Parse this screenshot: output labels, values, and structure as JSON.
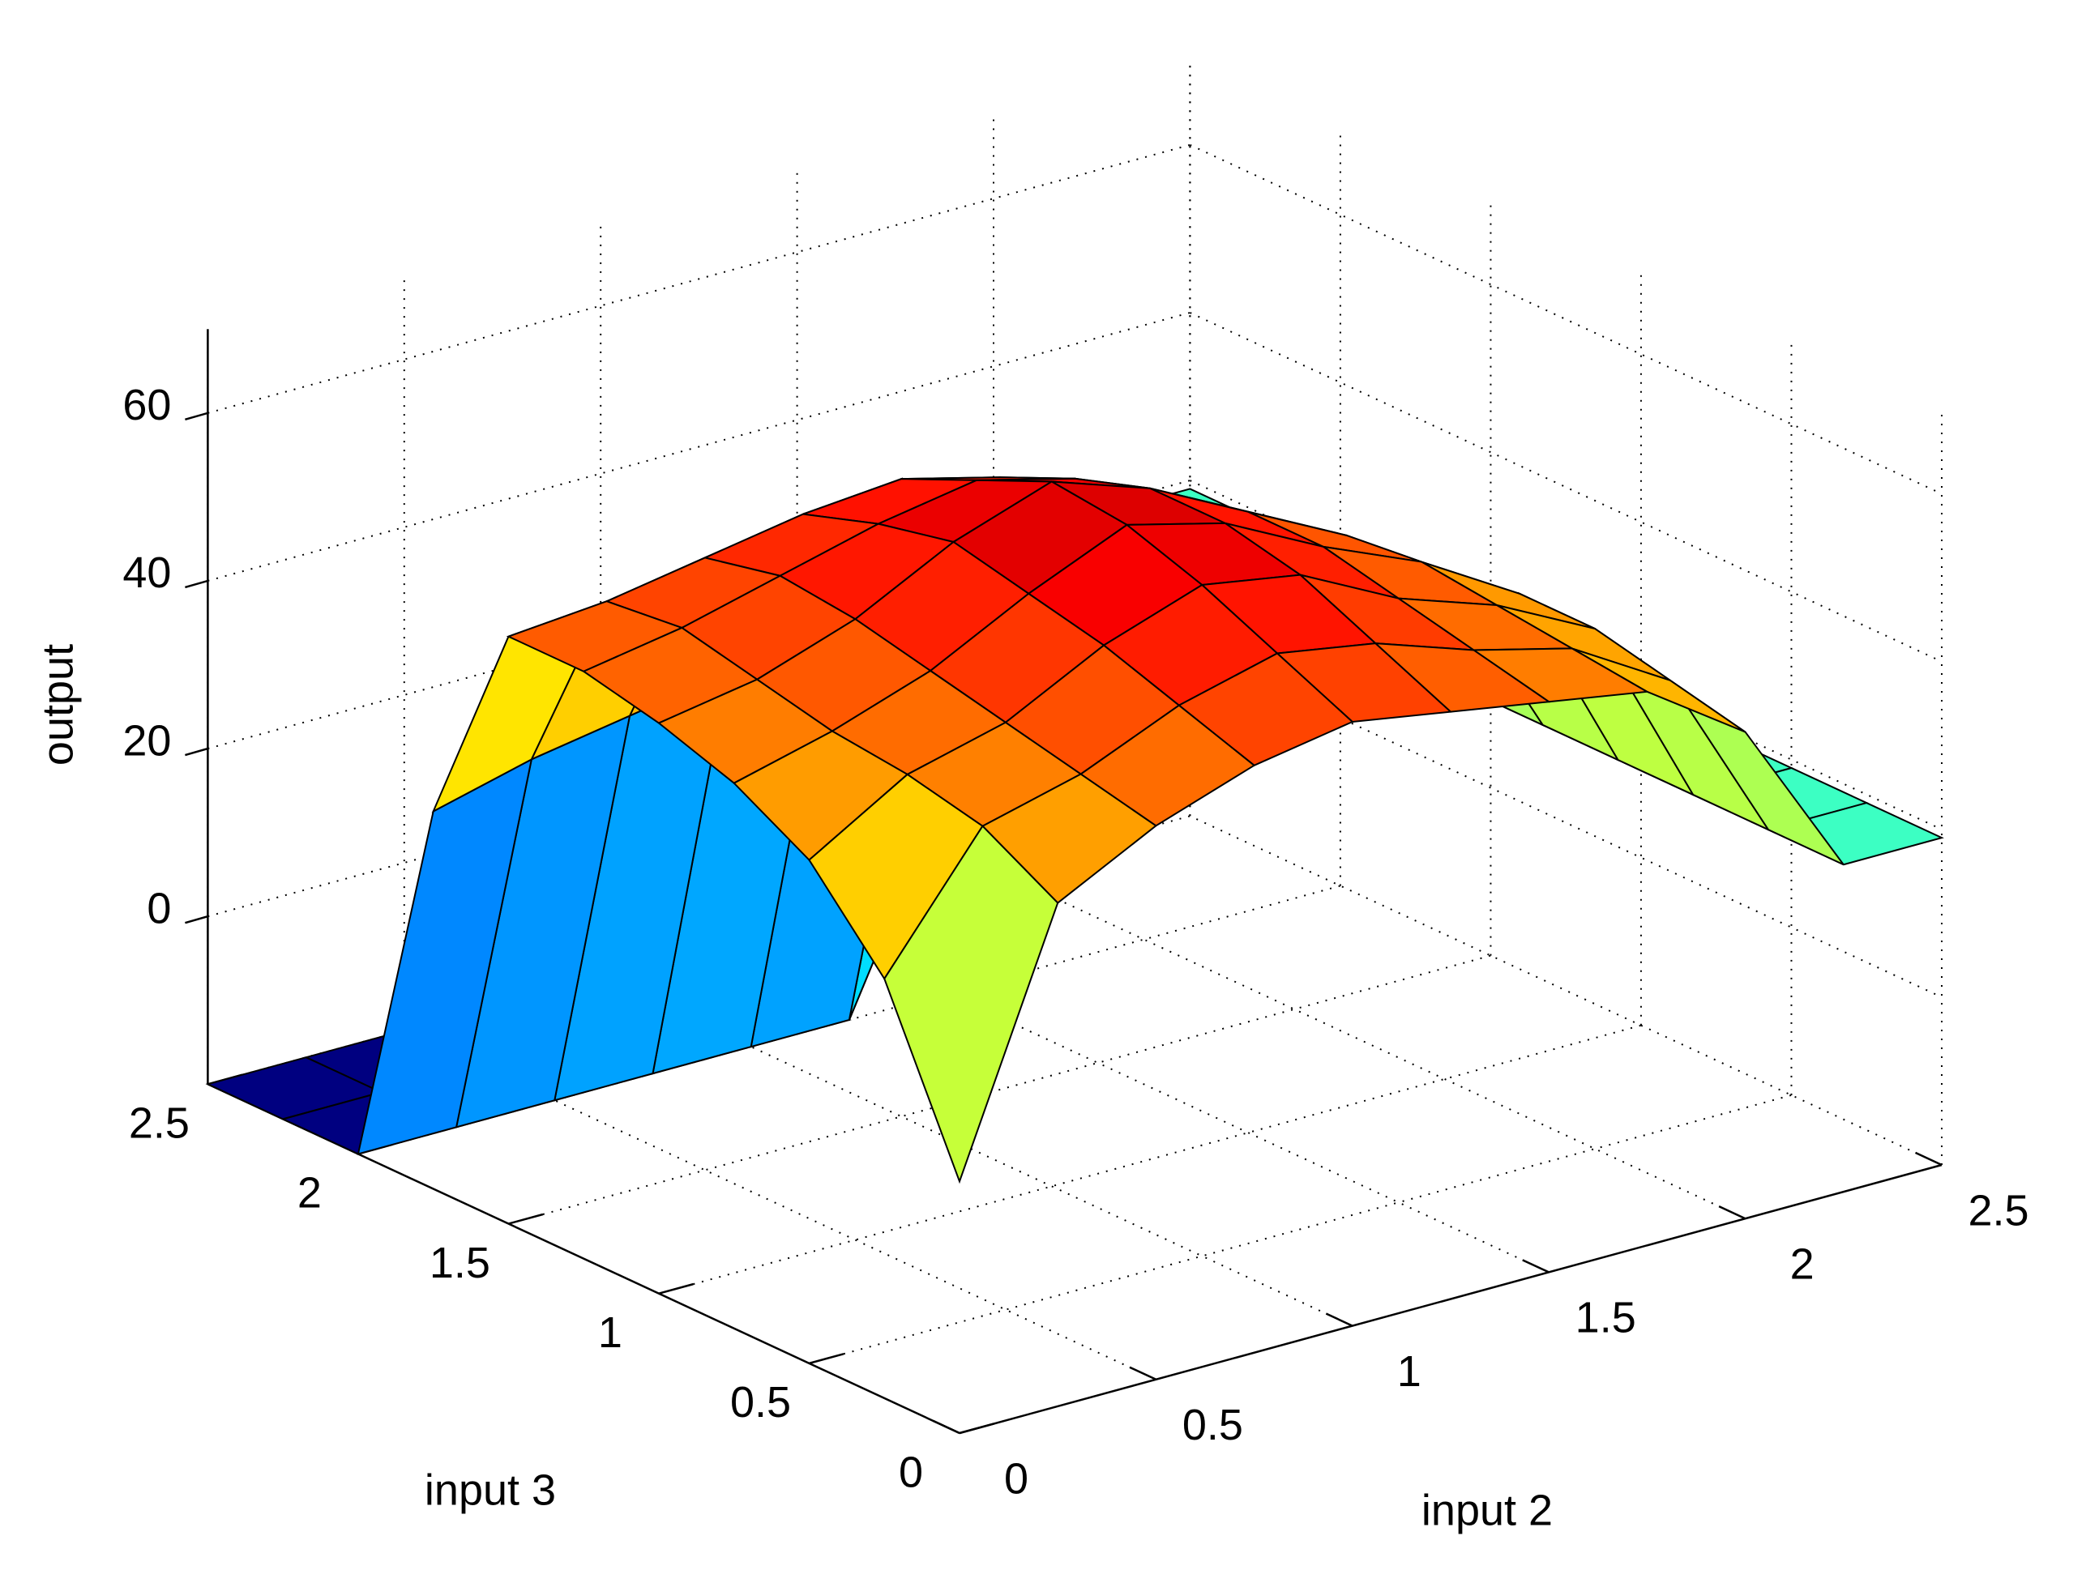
{
  "chart_data": {
    "type": "surface",
    "xlabel": "input 2",
    "ylabel": "input 3",
    "zlabel": "output",
    "x": [
      0,
      0.25,
      0.5,
      0.75,
      1,
      1.25,
      1.5,
      1.75,
      2,
      2.25,
      2.5
    ],
    "y": [
      0,
      0.25,
      0.5,
      0.75,
      1,
      1.25,
      1.5,
      1.75,
      2,
      2.25,
      2.5
    ],
    "z": [
      [
        10,
        40,
        46,
        50,
        52,
        50,
        48,
        46,
        38,
        19,
        19
      ],
      [
        30,
        45,
        48,
        53,
        56,
        54,
        50,
        47,
        40,
        19,
        19
      ],
      [
        40,
        47,
        50,
        56,
        60,
        58,
        52,
        48,
        42,
        19,
        19
      ],
      [
        45,
        48,
        52,
        58,
        63,
        60,
        54,
        49,
        42,
        19,
        19
      ],
      [
        48,
        50,
        54,
        60,
        64,
        60,
        54,
        48,
        40,
        19,
        19
      ],
      [
        50,
        52,
        55,
        58,
        60,
        57,
        52,
        46,
        36,
        19,
        19
      ],
      [
        50,
        51,
        53,
        55,
        56,
        53,
        48,
        42,
        32,
        19,
        19
      ],
      [
        25,
        28,
        30,
        32,
        32,
        30,
        28,
        25,
        22,
        19,
        19
      ],
      [
        -20,
        -20,
        -20,
        -20,
        -20,
        -20,
        5,
        10,
        15,
        19,
        19
      ],
      [
        -20,
        -20,
        -20,
        -20,
        -20,
        -20,
        5,
        10,
        15,
        19,
        19
      ],
      [
        -20,
        -20,
        -20,
        -20,
        -20,
        -20,
        5,
        10,
        15,
        19,
        19
      ]
    ],
    "xlim": [
      0,
      2.5
    ],
    "ylim": [
      0,
      2.5
    ],
    "zlim": [
      -20,
      70
    ],
    "xticks": [
      0,
      0.5,
      1,
      1.5,
      2,
      2.5
    ],
    "yticks": [
      0,
      0.5,
      1,
      1.5,
      2,
      2.5
    ],
    "zticks": [
      0,
      20,
      40,
      60
    ],
    "colormap": "jet",
    "edge_color": "#000000",
    "grid": true
  }
}
